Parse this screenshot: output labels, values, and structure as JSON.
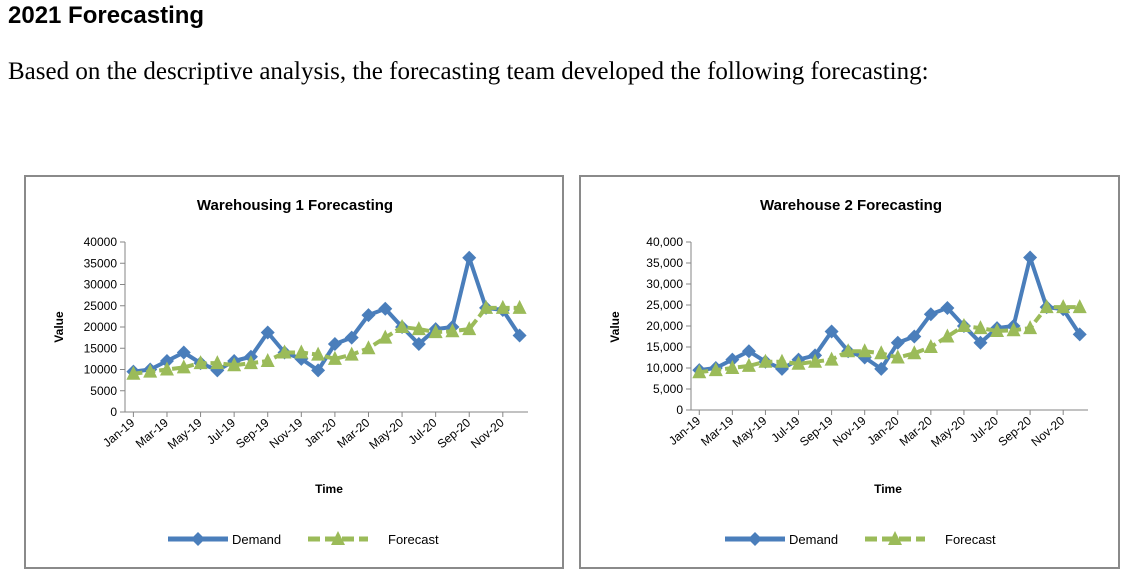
{
  "heading": "2021 Forecasting",
  "intro": "Based on the descriptive analysis, the forecasting team developed the following forecasting:",
  "colors": {
    "demand": "#4a7ebb",
    "forecast": "#9bbb59",
    "border": "#8a8a8a"
  },
  "chart_data": [
    {
      "type": "line",
      "title": "Warehousing 1 Forecasting",
      "xlabel": "Time",
      "ylabel": "Value",
      "ylim": [
        0,
        40000
      ],
      "yticks": [
        "40000",
        "35000",
        "30000",
        "25000",
        "20000",
        "15000",
        "10000",
        "5000",
        "0"
      ],
      "x_tick_labels": [
        "Jan-19",
        "Mar-19",
        "May-19",
        "Jul-19",
        "Sep-19",
        "Nov-19",
        "Jan-20",
        "Mar-20",
        "May-20",
        "Jul-20",
        "Sep-20",
        "Nov-20"
      ],
      "categories": [
        "Jan-19",
        "Feb-19",
        "Mar-19",
        "Apr-19",
        "May-19",
        "Jun-19",
        "Jul-19",
        "Aug-19",
        "Sep-19",
        "Oct-19",
        "Nov-19",
        "Dec-19",
        "Jan-20",
        "Feb-20",
        "Mar-20",
        "Apr-20",
        "May-20",
        "Jun-20",
        "Jul-20",
        "Aug-20",
        "Sep-20",
        "Oct-20",
        "Nov-20",
        "Dec-20"
      ],
      "series": [
        {
          "name": "Demand",
          "marker": "diamond",
          "values": [
            9500,
            10000,
            12000,
            14000,
            11500,
            9800,
            12000,
            13000,
            18700,
            14000,
            12500,
            9800,
            16000,
            17500,
            22800,
            24300,
            20000,
            16000,
            19500,
            20000,
            36300,
            24500,
            24000,
            18000
          ]
        },
        {
          "name": "Forecast",
          "marker": "triangle",
          "values": [
            9000,
            9500,
            10000,
            10500,
            11500,
            11500,
            11000,
            11500,
            12000,
            14000,
            14000,
            13500,
            12500,
            13500,
            15000,
            17500,
            20000,
            19500,
            18800,
            19000,
            19500,
            24500,
            24500,
            24500
          ]
        }
      ],
      "legend": "bottom"
    },
    {
      "type": "line",
      "title": "Warehouse 2 Forecasting",
      "xlabel": "Time",
      "ylabel": "Value",
      "ylim": [
        0,
        40000
      ],
      "yticks": [
        "40,000",
        "35,000",
        "30,000",
        "25,000",
        "20,000",
        "15,000",
        "10,000",
        "5,000",
        "0"
      ],
      "x_tick_labels": [
        "Jan-19",
        "Mar-19",
        "May-19",
        "Jul-19",
        "Sep-19",
        "Nov-19",
        "Jan-20",
        "Mar-20",
        "May-20",
        "Jul-20",
        "Sep-20",
        "Nov-20"
      ],
      "categories": [
        "Jan-19",
        "Feb-19",
        "Mar-19",
        "Apr-19",
        "May-19",
        "Jun-19",
        "Jul-19",
        "Aug-19",
        "Sep-19",
        "Oct-19",
        "Nov-19",
        "Dec-19",
        "Jan-20",
        "Feb-20",
        "Mar-20",
        "Apr-20",
        "May-20",
        "Jun-20",
        "Jul-20",
        "Aug-20",
        "Sep-20",
        "Oct-20",
        "Nov-20",
        "Dec-20"
      ],
      "series": [
        {
          "name": "Demand",
          "marker": "diamond",
          "values": [
            9500,
            10000,
            12000,
            14000,
            11500,
            9800,
            12000,
            13000,
            18700,
            14000,
            12500,
            9800,
            16000,
            17500,
            22800,
            24300,
            20000,
            16000,
            19500,
            20000,
            36300,
            24500,
            24000,
            18000
          ]
        },
        {
          "name": "Forecast",
          "marker": "triangle",
          "values": [
            9000,
            9500,
            10000,
            10500,
            11500,
            11500,
            11000,
            11500,
            12000,
            14000,
            14000,
            13500,
            12500,
            13500,
            15000,
            17500,
            20000,
            19500,
            18800,
            19000,
            19500,
            24500,
            24500,
            24500
          ]
        }
      ],
      "legend": "bottom"
    }
  ]
}
